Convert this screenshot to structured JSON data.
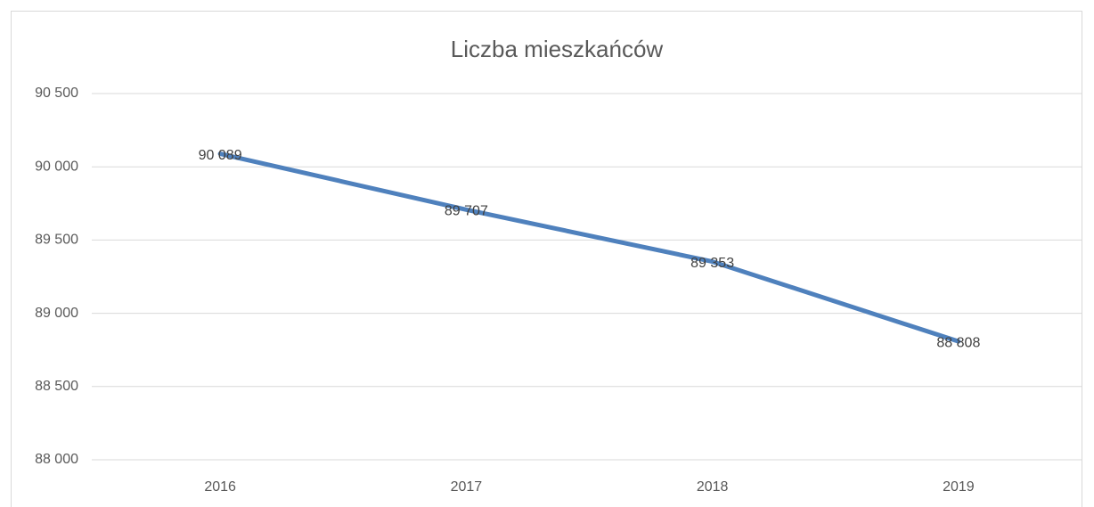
{
  "chart_data": {
    "type": "line",
    "title": "Liczba mieszkańców",
    "categories": [
      "2016",
      "2017",
      "2018",
      "2019"
    ],
    "series": [
      {
        "name": "Liczba mieszkańców",
        "color": "#4f81bd",
        "values": [
          90089,
          89707,
          89353,
          88808
        ],
        "value_labels": [
          "90 089",
          "89 707",
          "89 353",
          "88 808"
        ]
      }
    ],
    "ylim": [
      88000,
      90500
    ],
    "yticks": [
      {
        "value": 88000,
        "label": "88 000"
      },
      {
        "value": 88500,
        "label": "88 500"
      },
      {
        "value": 89000,
        "label": "89 000"
      },
      {
        "value": 89500,
        "label": "89 500"
      },
      {
        "value": 90000,
        "label": "90 000"
      },
      {
        "value": 90500,
        "label": "90 500"
      }
    ],
    "grid": true
  }
}
